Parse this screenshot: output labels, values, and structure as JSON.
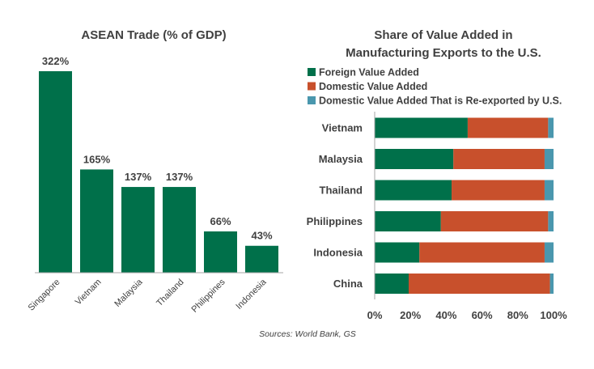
{
  "colors": {
    "green": "#00704A",
    "orange": "#C8502C",
    "teal": "#4A97AE",
    "axis": "#a6a6a6",
    "text": "#404040"
  },
  "chart_data": [
    {
      "type": "bar",
      "title": "ASEAN Trade (% of GDP)",
      "categories": [
        "Singapore",
        "Vietnam",
        "Malaysia",
        "Thailand",
        "Philippines",
        "Indonesia"
      ],
      "values": [
        322,
        165,
        137,
        137,
        66,
        43
      ],
      "data_labels": [
        "322%",
        "165%",
        "137%",
        "137%",
        "66%",
        "43%"
      ],
      "unit": "%",
      "ylim": [
        0,
        322
      ],
      "grid": false,
      "legend": "none"
    },
    {
      "type": "bar",
      "orientation": "horizontal",
      "stacked": true,
      "title_lines": [
        "Share of Value Added in",
        "Manufacturing Exports to the U.S."
      ],
      "categories": [
        "Vietnam",
        "Malaysia",
        "Thailand",
        "Philippines",
        "Indonesia",
        "China"
      ],
      "series": [
        {
          "name": "Foreign Value Added",
          "color": "#00704A",
          "values": [
            52,
            44,
            43,
            37,
            25,
            19
          ]
        },
        {
          "name": "Domestic Value Added",
          "color": "#C8502C",
          "values": [
            45,
            51,
            52,
            60,
            70,
            79
          ]
        },
        {
          "name": "Domestic Value Added That is Re-exported by U.S.",
          "color": "#4A97AE",
          "values": [
            3,
            5,
            5,
            3,
            5,
            2
          ]
        }
      ],
      "xticks": [
        "0%",
        "20%",
        "40%",
        "60%",
        "80%",
        "100%"
      ],
      "xlim": [
        0,
        100
      ],
      "grid": false,
      "legend": "top-left"
    }
  ],
  "source": "Sources: World Bank, GS"
}
